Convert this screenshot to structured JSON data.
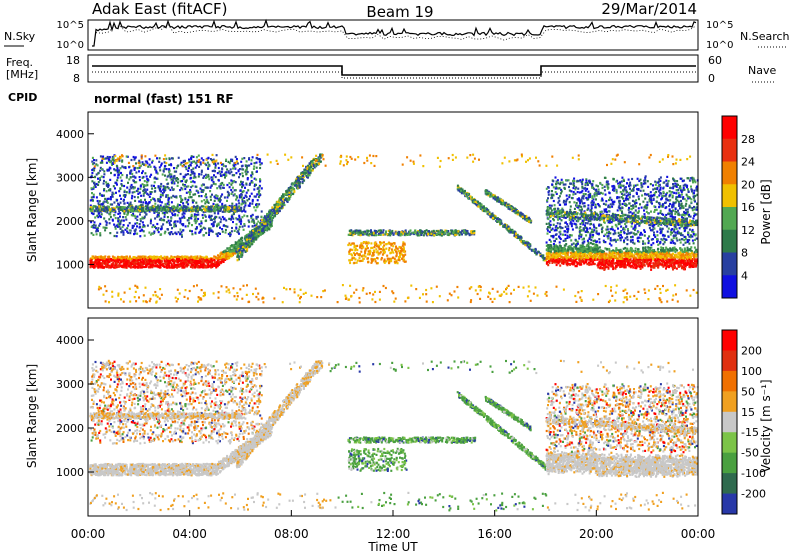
{
  "header": {
    "station": "Adak East (fitACF)",
    "beam": "Beam 19",
    "date": "29/Mar/2014"
  },
  "panels": {
    "nsky_label": "N.Sky",
    "nsky_ticks": [
      "10^5",
      "10^0"
    ],
    "nsearch_label": "N.Search",
    "freq_label_1": "Freq.",
    "freq_label_2": "[MHz]",
    "freq_ticks": [
      "18",
      "8"
    ],
    "nave_label": "Nave",
    "nave_ticks": [
      "60",
      "0"
    ],
    "cpid_label": "CPID",
    "cpid_text": "normal (fast) 151 RF"
  },
  "chart_data": [
    {
      "type": "heatmap",
      "name": "power",
      "ylabel": "Slant Range [km]",
      "ylim": [
        0,
        4500
      ],
      "yticks": [
        "1000",
        "2000",
        "3000",
        "4000"
      ],
      "colorbar_label": "Power [dB]",
      "colorbar_ticks": [
        "4",
        "8",
        "12",
        "16",
        "20",
        "24",
        "28"
      ],
      "colors": [
        "#1010e0",
        "#2840a0",
        "#2e7a4a",
        "#52a852",
        "#f0c000",
        "#f08000",
        "#e83010",
        "#ff0000"
      ]
    },
    {
      "type": "heatmap",
      "name": "velocity",
      "ylabel": "Slant Range [km]",
      "ylim": [
        0,
        4500
      ],
      "yticks": [
        "1000",
        "2000",
        "3000",
        "4000"
      ],
      "colorbar_label": "Velocity [m s⁻¹]",
      "colorbar_ticks": [
        "200",
        "100",
        "50",
        "15",
        "-15",
        "-50",
        "-100",
        "-200"
      ],
      "colors": [
        "#2838a8",
        "#2f6a4e",
        "#4aa040",
        "#7cc448",
        "#c8c8c8",
        "#f0a020",
        "#f07000",
        "#e03010",
        "#ff0000"
      ]
    }
  ],
  "xaxis": {
    "label": "Time UT",
    "ticks": [
      "00:00",
      "04:00",
      "08:00",
      "12:00",
      "16:00",
      "20:00",
      "00:00"
    ]
  }
}
